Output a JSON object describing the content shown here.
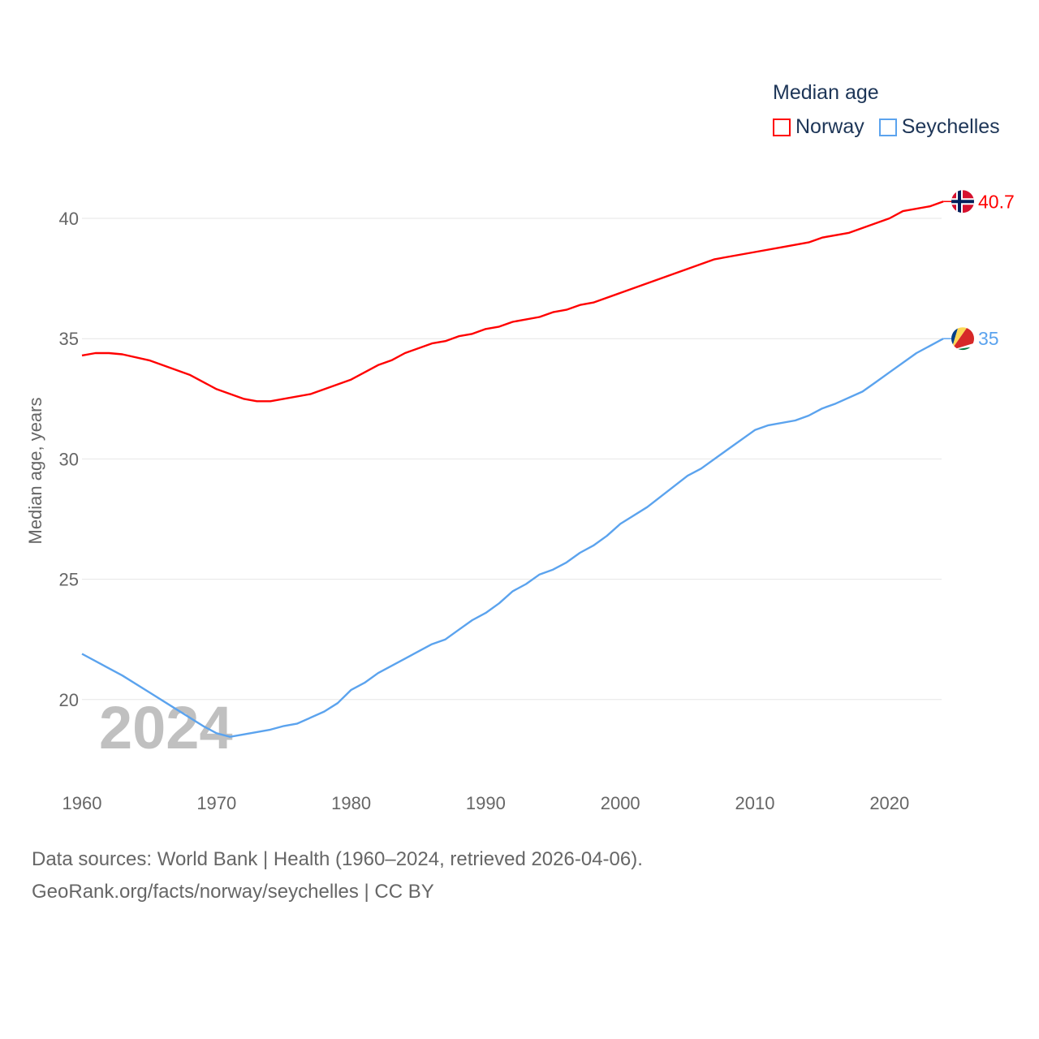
{
  "chart_data": {
    "type": "line",
    "title": "Median age",
    "ylabel": "Median age, years",
    "xlabel": "",
    "xlim": [
      1960,
      2024
    ],
    "ylim": [
      17.5,
      42
    ],
    "xticks": [
      "1960",
      "1970",
      "1980",
      "1990",
      "2000",
      "2010",
      "2020"
    ],
    "yticks": [
      "20",
      "25",
      "30",
      "35",
      "40"
    ],
    "grid": "horizontal",
    "legend_position": "top-right",
    "year_watermark": "2024",
    "series": [
      {
        "name": "Norway",
        "color": "#ff0000",
        "end_label": "40.7",
        "points": [
          [
            1960,
            34.3
          ],
          [
            1961,
            34.4
          ],
          [
            1962,
            34.4
          ],
          [
            1963,
            34.35
          ],
          [
            1965,
            34.1
          ],
          [
            1968,
            33.5
          ],
          [
            1970,
            32.9
          ],
          [
            1972,
            32.5
          ],
          [
            1973,
            32.4
          ],
          [
            1974,
            32.4
          ],
          [
            1977,
            32.7
          ],
          [
            1980,
            33.3
          ],
          [
            1982,
            33.9
          ],
          [
            1983,
            34.1
          ],
          [
            1984,
            34.4
          ],
          [
            1986,
            34.8
          ],
          [
            1987,
            34.9
          ],
          [
            1988,
            35.1
          ],
          [
            1989,
            35.2
          ],
          [
            1990,
            35.4
          ],
          [
            1991,
            35.5
          ],
          [
            1992,
            35.7
          ],
          [
            1994,
            35.9
          ],
          [
            1995,
            36.1
          ],
          [
            1996,
            36.2
          ],
          [
            1997,
            36.4
          ],
          [
            1998,
            36.5
          ],
          [
            2000,
            36.9
          ],
          [
            2002,
            37.3
          ],
          [
            2005,
            37.9
          ],
          [
            2007,
            38.3
          ],
          [
            2010,
            38.6
          ],
          [
            2012,
            38.8
          ],
          [
            2014,
            39.0
          ],
          [
            2015,
            39.2
          ],
          [
            2017,
            39.4
          ],
          [
            2020,
            40.0
          ],
          [
            2021,
            40.3
          ],
          [
            2023,
            40.5
          ],
          [
            2024,
            40.7
          ]
        ]
      },
      {
        "name": "Seychelles",
        "color": "#5ba3ee",
        "end_label": "35",
        "points": [
          [
            1960,
            21.9
          ],
          [
            1963,
            21.0
          ],
          [
            1965,
            20.3
          ],
          [
            1967,
            19.6
          ],
          [
            1969,
            18.9
          ],
          [
            1970,
            18.6
          ],
          [
            1971,
            18.45
          ],
          [
            1972,
            18.55
          ],
          [
            1974,
            18.75
          ],
          [
            1975,
            18.9
          ],
          [
            1976,
            19.0
          ],
          [
            1978,
            19.5
          ],
          [
            1979,
            19.85
          ],
          [
            1980,
            20.4
          ],
          [
            1981,
            20.7
          ],
          [
            1982,
            21.1
          ],
          [
            1984,
            21.7
          ],
          [
            1986,
            22.3
          ],
          [
            1987,
            22.5
          ],
          [
            1988,
            22.9
          ],
          [
            1989,
            23.3
          ],
          [
            1990,
            23.6
          ],
          [
            1991,
            24.0
          ],
          [
            1992,
            24.5
          ],
          [
            1993,
            24.8
          ],
          [
            1994,
            25.2
          ],
          [
            1995,
            25.4
          ],
          [
            1996,
            25.7
          ],
          [
            1997,
            26.1
          ],
          [
            1998,
            26.4
          ],
          [
            1999,
            26.8
          ],
          [
            2000,
            27.3
          ],
          [
            2002,
            28.0
          ],
          [
            2005,
            29.3
          ],
          [
            2006,
            29.6
          ],
          [
            2008,
            30.4
          ],
          [
            2010,
            31.2
          ],
          [
            2011,
            31.4
          ],
          [
            2013,
            31.6
          ],
          [
            2014,
            31.8
          ],
          [
            2015,
            32.1
          ],
          [
            2016,
            32.3
          ],
          [
            2018,
            32.8
          ],
          [
            2019,
            33.2
          ],
          [
            2020,
            33.6
          ],
          [
            2022,
            34.4
          ],
          [
            2024,
            35.0
          ]
        ]
      }
    ]
  },
  "sources": {
    "line1": "Data sources: World Bank | Health (1960–2024, retrieved 2026-04-06).",
    "line2": "GeoRank.org/facts/norway/seychelles | CC BY"
  }
}
